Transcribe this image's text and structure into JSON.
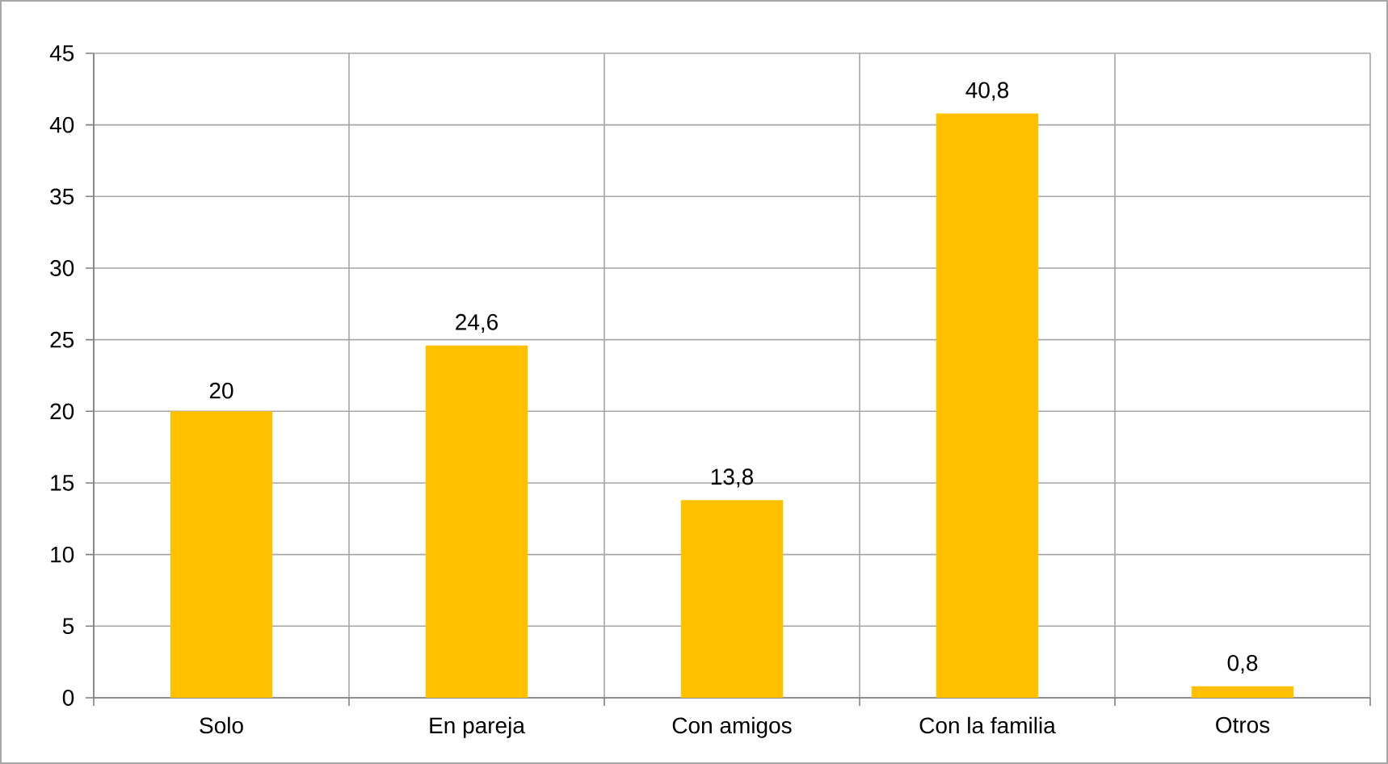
{
  "chart_data": {
    "type": "bar",
    "categories": [
      "Solo",
      "En pareja",
      "Con amigos",
      "Con la familia",
      "Otros"
    ],
    "values": [
      20,
      24.6,
      13.8,
      40.8,
      0.8
    ],
    "value_labels": [
      "20",
      "24,6",
      "13,8",
      "40,8",
      "0,8"
    ],
    "color": "#ffc000",
    "ylim": [
      0,
      45
    ],
    "yticks": [
      0,
      5,
      10,
      15,
      20,
      25,
      30,
      35,
      40,
      45
    ],
    "grid": true
  }
}
